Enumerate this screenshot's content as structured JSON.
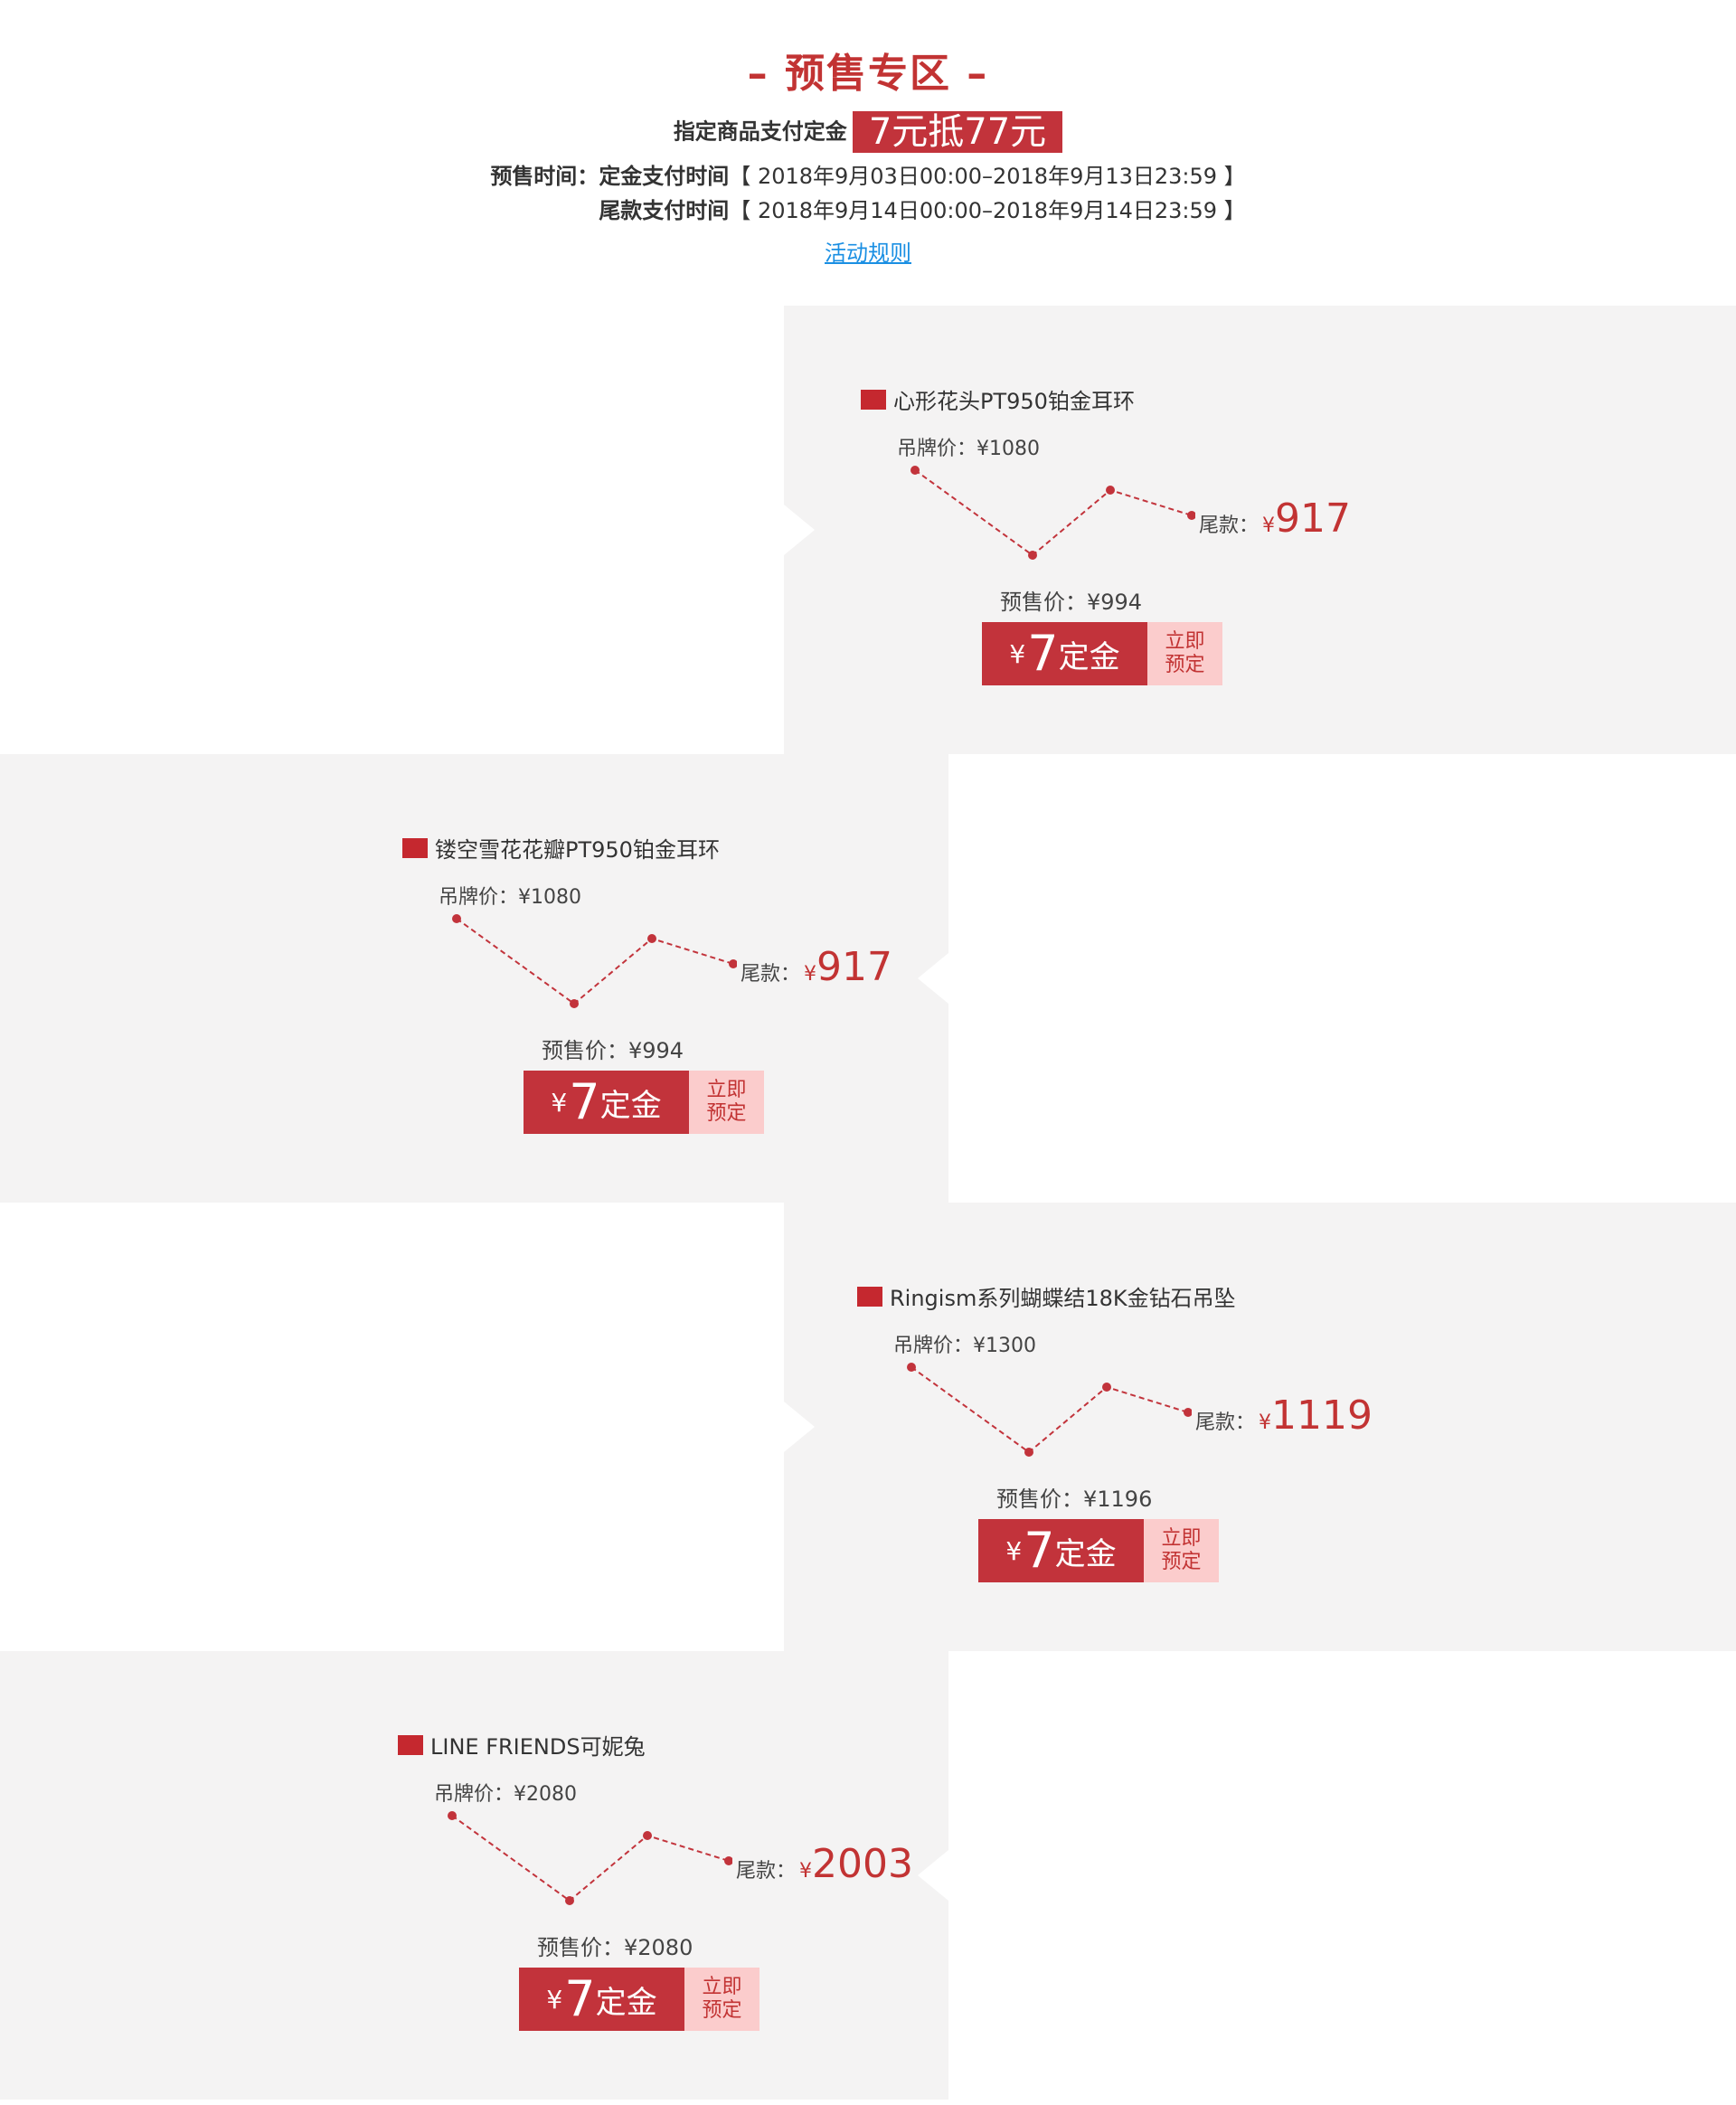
{
  "header": {
    "title": "– 预售专区 –",
    "deposit_text": "指定商品支付定金",
    "deposit_badge": "7元抵77元",
    "time_label": "预售时间：",
    "deposit_time_label": "定金支付时间",
    "deposit_time_range": "【 2018年9月03日00:00–2018年9月13日23:59 】",
    "final_time_label": "尾款支付时间",
    "final_time_range": "【 2018年9月14日00:00–2018年9月14日23:59 】",
    "rules_link": "活动规则"
  },
  "labels": {
    "tag_price": "吊牌价：",
    "final_label": "尾款：",
    "pre_price": "预售价：",
    "currency": "¥",
    "deposit_amount": "7",
    "deposit_word": "定金",
    "action_line1": "立即",
    "action_line2": "预定"
  },
  "products": [
    {
      "name": "心形花头PT950铂金耳环",
      "tag_price": "¥1080",
      "pre_price": "¥994",
      "final_price": "917"
    },
    {
      "name": "镂空雪花花瓣PT950铂金耳环",
      "tag_price": "¥1080",
      "pre_price": "¥994",
      "final_price": "917"
    },
    {
      "name": "Ringism系列蝴蝶结18K金钻石吊坠",
      "tag_price": "¥1300",
      "pre_price": "¥1196",
      "final_price": "1119"
    },
    {
      "name": "LINE FRIENDS可妮兔",
      "tag_price": "¥2080",
      "pre_price": "¥2080",
      "final_price": "2003"
    }
  ],
  "colors": {
    "accent": "#c2333b",
    "light_accent": "#fbcccc",
    "panel_bg": "#f4f3f3",
    "link": "#1a8fe3"
  }
}
